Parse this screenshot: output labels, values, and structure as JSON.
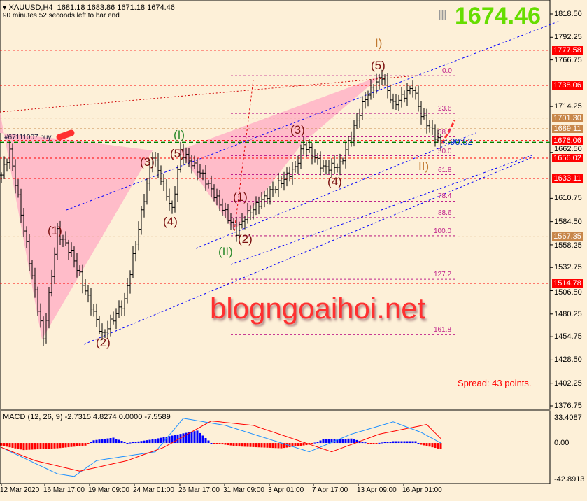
{
  "header": {
    "symbol": "XAUUSD,H4",
    "ohlc": "1681.18 1683.86 1671.18 1674.46",
    "timer": "90 minutes 52 seconds left to bar end",
    "big_price": "1674.46",
    "big_bars": "III"
  },
  "order_label": "#67111007 buy",
  "countdown": "< 90:52",
  "watermark": "blogngoaihoi.net",
  "spread": "Spread: 43 points.",
  "colors": {
    "background": "#fdf0d8",
    "bull": "#000000",
    "red_line": "#e00000",
    "tan_label": "#c8874a",
    "fib": "#c0208a",
    "channel": "#0000ff",
    "pink": "#ffb6c8",
    "macd_pos": "#0000ff",
    "macd_neg": "#ff0000",
    "signal": "#1e90ff",
    "big_price": "#66dd00"
  },
  "chart_data": {
    "type": "candlestick",
    "price_ticks": [
      "1818.50",
      "1792.25",
      "1766.75",
      "1714.25",
      "1662.50",
      "1610.75",
      "1584.50",
      "1558.25",
      "1532.75",
      "1506.50",
      "1480.25",
      "1454.75",
      "1428.50",
      "1402.25",
      "1376.75"
    ],
    "ylim": [
      1376.75,
      1818.5
    ],
    "time_ticks": [
      "12 Mar 2020",
      "16 Mar 17:00",
      "19 Mar 09:00",
      "24 Mar 01:00",
      "26 Mar 17:00",
      "31 Mar 09:00",
      "3 Apr 01:00",
      "7 Apr 17:00",
      "13 Apr 09:00",
      "16 Apr 01:00"
    ],
    "price_pivots": [
      [
        0,
        1637
      ],
      [
        3,
        1664
      ],
      [
        15,
        1452
      ],
      [
        20,
        1573
      ],
      [
        25,
        1549
      ],
      [
        36,
        1456
      ],
      [
        44,
        1495
      ],
      [
        54,
        1660
      ],
      [
        61,
        1597
      ],
      [
        64,
        1664
      ],
      [
        72,
        1636
      ],
      [
        84,
        1573
      ],
      [
        87,
        1590
      ],
      [
        105,
        1645
      ],
      [
        108,
        1672
      ],
      [
        115,
        1645
      ],
      [
        121,
        1648
      ],
      [
        130,
        1724
      ],
      [
        136,
        1749
      ],
      [
        140,
        1716
      ],
      [
        147,
        1736
      ],
      [
        150,
        1705
      ],
      [
        157,
        1672
      ]
    ],
    "price_lines": [
      {
        "value": "1777.58",
        "color": "#ff0000"
      },
      {
        "value": "1738.06",
        "color": "#ff0000"
      },
      {
        "value": "1701.30",
        "color": "#c8874a"
      },
      {
        "value": "1689.11",
        "color": "#c8874a"
      },
      {
        "value": "1676.06",
        "color": "#ff0000"
      },
      {
        "value": "1656.02",
        "color": "#ff0000"
      },
      {
        "value": "1633.11",
        "color": "#ff0000"
      },
      {
        "value": "1567.35",
        "color": "#c8874a"
      },
      {
        "value": "1514.78",
        "color": "#ff0000"
      }
    ],
    "fib_levels": [
      "0.0",
      "23.6",
      "38.2",
      "50.0",
      "61.8",
      "78.4",
      "88.6",
      "100.0",
      "127.2",
      "161.8"
    ],
    "fib_range": [
      1749,
      1568.5
    ],
    "waves": [
      "(1)",
      "(2)",
      "(3)",
      "(4)",
      "(5)",
      "(I)",
      "(1)",
      "(II)",
      "(2)",
      "(3)",
      "(4)",
      "(5)",
      "I)",
      "II)"
    ],
    "macd": {
      "label": "MACD (12, 26, 9) -2.7315 4.8274 0.0000 -7.5589",
      "ticks": [
        "33.4087",
        "0.00",
        "-42.8913"
      ],
      "ylim": [
        -42.89,
        33.41
      ],
      "hist_pivots": [
        [
          0,
          -3
        ],
        [
          8,
          -8
        ],
        [
          20,
          -6
        ],
        [
          30,
          -3
        ],
        [
          33,
          3
        ],
        [
          40,
          6
        ],
        [
          45,
          0
        ],
        [
          54,
          4
        ],
        [
          70,
          14
        ],
        [
          75,
          0
        ],
        [
          85,
          -4
        ],
        [
          100,
          -6
        ],
        [
          110,
          -2
        ],
        [
          115,
          4
        ],
        [
          125,
          5
        ],
        [
          132,
          -1
        ],
        [
          140,
          2
        ],
        [
          148,
          2
        ],
        [
          150,
          -2
        ],
        [
          157,
          -7
        ]
      ],
      "main_pivots": [
        [
          0,
          -5
        ],
        [
          20,
          -35
        ],
        [
          26,
          -38
        ],
        [
          34,
          -20
        ],
        [
          55,
          -10
        ],
        [
          65,
          28
        ],
        [
          80,
          20
        ],
        [
          110,
          -10
        ],
        [
          125,
          10
        ],
        [
          140,
          24
        ],
        [
          150,
          12
        ],
        [
          157,
          0
        ]
      ],
      "signal_pivots": [
        [
          0,
          -5
        ],
        [
          12,
          -20
        ],
        [
          28,
          -32
        ],
        [
          45,
          -20
        ],
        [
          58,
          -5
        ],
        [
          75,
          25
        ],
        [
          90,
          20
        ],
        [
          118,
          -10
        ],
        [
          135,
          10
        ],
        [
          152,
          21
        ],
        [
          157,
          5
        ]
      ]
    }
  }
}
